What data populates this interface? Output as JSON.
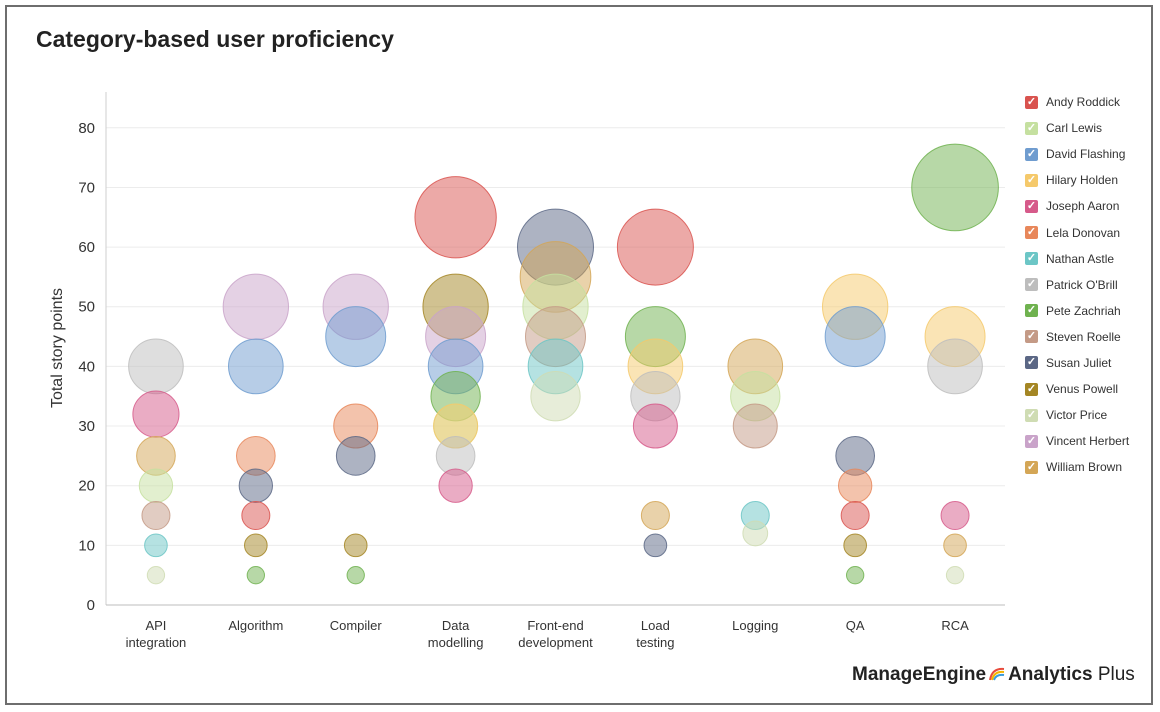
{
  "title": "Category-based user proficiency",
  "brand": {
    "company": "ManageEngine",
    "product": "Analytics",
    "edition": "Plus"
  },
  "legend_check": "✓",
  "chart_data": {
    "type": "scatter",
    "subtype": "bubble",
    "title": "Category-based user proficiency",
    "xlabel": "",
    "ylabel": "Total story points",
    "ylim": [
      0,
      86
    ],
    "yticks": [
      0,
      10,
      20,
      30,
      40,
      50,
      60,
      70,
      80
    ],
    "grid": true,
    "legend_position": "right",
    "categories": [
      "API integration",
      "Algorithm",
      "Compiler",
      "Data modelling",
      "Front-end development",
      "Load testing",
      "Logging",
      "QA",
      "RCA"
    ],
    "category_labels": [
      [
        "API",
        "integration"
      ],
      [
        "Algorithm"
      ],
      [
        "Compiler"
      ],
      [
        "Data",
        "modelling"
      ],
      [
        "Front-end",
        "development"
      ],
      [
        "Load",
        "testing"
      ],
      [
        "Logging"
      ],
      [
        "QA"
      ],
      [
        "RCA"
      ]
    ],
    "series": [
      {
        "name": "Andy Roddick",
        "color": "#d9534f",
        "points": [
          {
            "category": "Algorithm",
            "y": 15
          },
          {
            "category": "Data modelling",
            "y": 65
          },
          {
            "category": "Load testing",
            "y": 60
          },
          {
            "category": "QA",
            "y": 15
          }
        ]
      },
      {
        "name": "Carl Lewis",
        "color": "#c5e0a0",
        "points": [
          {
            "category": "API integration",
            "y": 20
          },
          {
            "category": "Data modelling",
            "y": 30
          },
          {
            "category": "Front-end development",
            "y": 50
          },
          {
            "category": "Logging",
            "y": 35
          }
        ]
      },
      {
        "name": "David Flashing",
        "color": "#6f9ccf",
        "points": [
          {
            "category": "Algorithm",
            "y": 40
          },
          {
            "category": "Compiler",
            "y": 45
          },
          {
            "category": "Data modelling",
            "y": 40
          },
          {
            "category": "QA",
            "y": 45
          }
        ]
      },
      {
        "name": "Hilary Holden",
        "color": "#f5c96b",
        "points": [
          {
            "category": "Data modelling",
            "y": 30
          },
          {
            "category": "Load testing",
            "y": 40
          },
          {
            "category": "QA",
            "y": 50
          },
          {
            "category": "RCA",
            "y": 45
          }
        ]
      },
      {
        "name": "Joseph Aaron",
        "color": "#d65a8a",
        "points": [
          {
            "category": "API integration",
            "y": 32
          },
          {
            "category": "Data modelling",
            "y": 20
          },
          {
            "category": "Load testing",
            "y": 30
          },
          {
            "category": "RCA",
            "y": 15
          }
        ]
      },
      {
        "name": "Lela Donovan",
        "color": "#e8875a",
        "points": [
          {
            "category": "Algorithm",
            "y": 25
          },
          {
            "category": "Compiler",
            "y": 30
          },
          {
            "category": "QA",
            "y": 20
          }
        ]
      },
      {
        "name": "Nathan Astle",
        "color": "#6cc6c6",
        "points": [
          {
            "category": "API integration",
            "y": 10
          },
          {
            "category": "Front-end development",
            "y": 40
          },
          {
            "category": "Logging",
            "y": 15
          }
        ]
      },
      {
        "name": "Patrick O'Brill",
        "color": "#bdbdbd",
        "points": [
          {
            "category": "API integration",
            "y": 40
          },
          {
            "category": "Data modelling",
            "y": 25
          },
          {
            "category": "Load testing",
            "y": 35
          },
          {
            "category": "RCA",
            "y": 40
          }
        ]
      },
      {
        "name": "Pete Zachriah",
        "color": "#6fb24f",
        "points": [
          {
            "category": "Algorithm",
            "y": 5
          },
          {
            "category": "Compiler",
            "y": 5
          },
          {
            "category": "Data modelling",
            "y": 35
          },
          {
            "category": "Load testing",
            "y": 45
          },
          {
            "category": "QA",
            "y": 5
          },
          {
            "category": "RCA",
            "y": 70
          }
        ]
      },
      {
        "name": "Steven Roelle",
        "color": "#c49a86",
        "points": [
          {
            "category": "API integration",
            "y": 15
          },
          {
            "category": "Front-end development",
            "y": 45
          },
          {
            "category": "Logging",
            "y": 30
          }
        ]
      },
      {
        "name": "Susan Juliet",
        "color": "#5b6785",
        "points": [
          {
            "category": "Algorithm",
            "y": 20
          },
          {
            "category": "Compiler",
            "y": 25
          },
          {
            "category": "Front-end development",
            "y": 60
          },
          {
            "category": "Load testing",
            "y": 10
          },
          {
            "category": "QA",
            "y": 25
          }
        ]
      },
      {
        "name": "Venus Powell",
        "color": "#a48624",
        "points": [
          {
            "category": "Algorithm",
            "y": 10
          },
          {
            "category": "Compiler",
            "y": 10
          },
          {
            "category": "Data modelling",
            "y": 50
          },
          {
            "category": "QA",
            "y": 10
          }
        ]
      },
      {
        "name": "Victor Price",
        "color": "#cfdcb3",
        "points": [
          {
            "category": "API integration",
            "y": 5
          },
          {
            "category": "Front-end development",
            "y": 35
          },
          {
            "category": "Logging",
            "y": 12
          },
          {
            "category": "RCA",
            "y": 5
          }
        ]
      },
      {
        "name": "Vincent Herbert",
        "color": "#c9a3c9",
        "points": [
          {
            "category": "Algorithm",
            "y": 50
          },
          {
            "category": "Compiler",
            "y": 50
          },
          {
            "category": "Data modelling",
            "y": 45
          }
        ]
      },
      {
        "name": "William Brown",
        "color": "#d4a656",
        "points": [
          {
            "category": "API integration",
            "y": 25
          },
          {
            "category": "Front-end development",
            "y": 55
          },
          {
            "category": "Load testing",
            "y": 15
          },
          {
            "category": "Logging",
            "y": 40
          },
          {
            "category": "RCA",
            "y": 10
          }
        ]
      }
    ]
  }
}
